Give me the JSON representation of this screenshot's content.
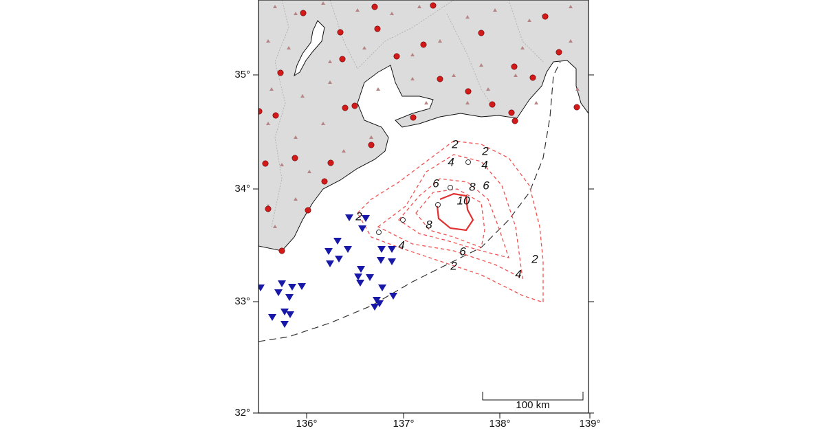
{
  "map": {
    "lat_ticks": [
      "35°",
      "34°",
      "33°",
      "32°"
    ],
    "lon_ticks": [
      "136°",
      "137°",
      "138°",
      "139°"
    ],
    "contour_labels": [
      "2",
      "2",
      "4",
      "4",
      "6",
      "8",
      "6",
      "10",
      "8",
      "2",
      "4",
      "6",
      "2",
      "4",
      "2"
    ],
    "scale_bar": "100 km"
  }
}
